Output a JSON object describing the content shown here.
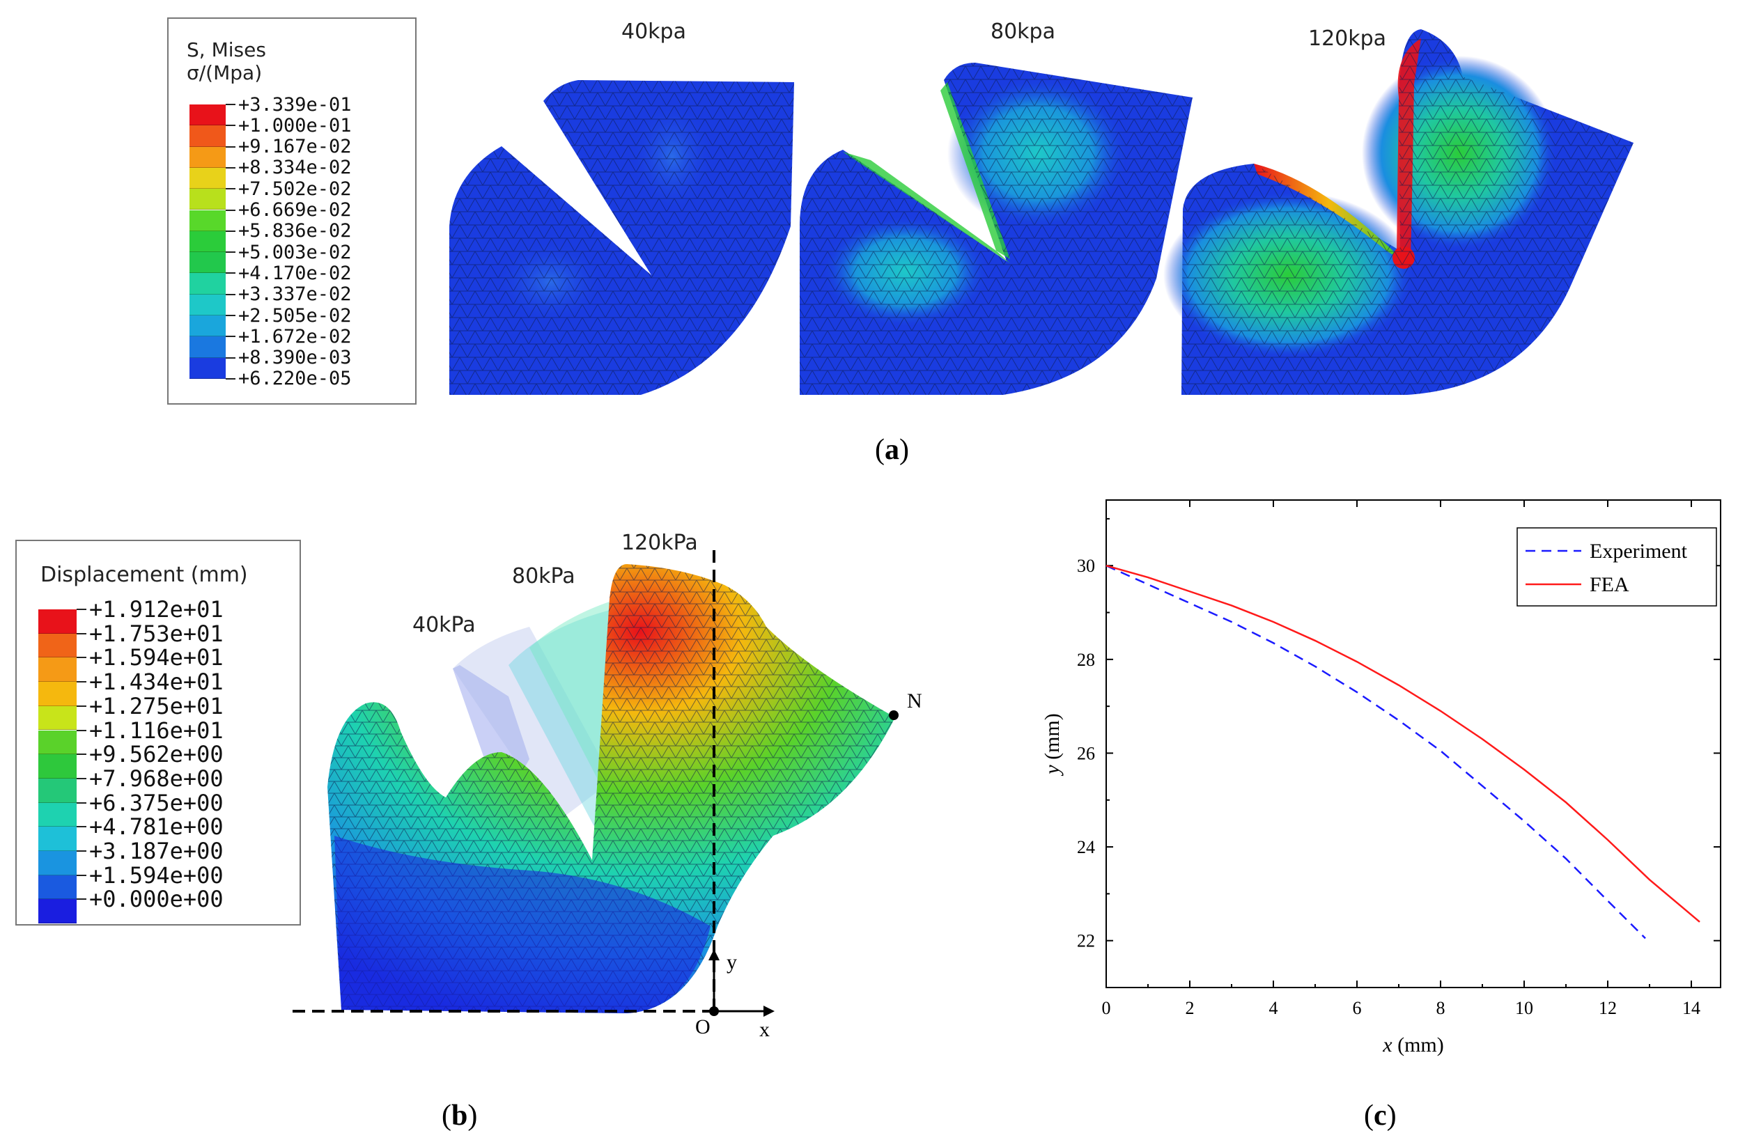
{
  "panel_a": {
    "label": "(a)",
    "letter": "a",
    "legend": {
      "title_line1": "S, Mises",
      "title_line2": "σ/(Mpa)",
      "values": [
        "+3.339e-01",
        "+1.000e-01",
        "+9.167e-02",
        "+8.334e-02",
        "+7.502e-02",
        "+6.669e-02",
        "+5.836e-02",
        "+5.003e-02",
        "+4.170e-02",
        "+3.337e-02",
        "+2.505e-02",
        "+1.672e-02",
        "+8.390e-03",
        "+6.220e-05"
      ],
      "colors": [
        "#e8121a",
        "#f0581a",
        "#f59a16",
        "#e8d21a",
        "#b8e01c",
        "#58d82a",
        "#2bcc3a",
        "#22c84c",
        "#20d2a0",
        "#1ec8c8",
        "#1aa6dc",
        "#1a78e0",
        "#1a3ce0"
      ]
    },
    "plots": [
      {
        "title": "40kpa"
      },
      {
        "title": "80kpa"
      },
      {
        "title": "120kpa"
      }
    ]
  },
  "panel_b": {
    "label": "(b)",
    "letter": "b",
    "legend": {
      "title": "Displacement (mm)",
      "values": [
        "+1.912e+01",
        "+1.753e+01",
        "+1.594e+01",
        "+1.434e+01",
        "+1.275e+01",
        "+1.116e+01",
        "+9.562e+00",
        "+7.968e+00",
        "+6.375e+00",
        "+4.781e+00",
        "+3.187e+00",
        "+1.594e+00",
        "+0.000e+00"
      ],
      "colors": [
        "#e8121a",
        "#f06418",
        "#f59a16",
        "#f5b80e",
        "#c8e41a",
        "#5ad22a",
        "#2ec83c",
        "#24c878",
        "#1ed2b0",
        "#1ec0d8",
        "#1a94e0",
        "#1a5ae0",
        "#1a1ee0"
      ]
    },
    "pressure_labels": [
      "40kPa",
      "80kPa",
      "120kPa"
    ],
    "axis_labels": {
      "origin": "O",
      "x": "x",
      "y": "y",
      "point": "N"
    }
  },
  "panel_c": {
    "label": "(c)",
    "letter": "c"
  },
  "chart_data": {
    "type": "line",
    "title": "",
    "xlabel": "x (mm)",
    "ylabel": "y (mm)",
    "xlabel_var": "x",
    "xlabel_unit": " (mm)",
    "ylabel_var": "y",
    "ylabel_unit": " (mm)",
    "xlim": [
      0,
      14.7
    ],
    "ylim": [
      21,
      31.4
    ],
    "xticks": [
      0,
      2,
      4,
      6,
      8,
      10,
      12,
      14
    ],
    "yticks": [
      22,
      24,
      26,
      28,
      30
    ],
    "legend_position": "top-right",
    "series": [
      {
        "name": "Experiment",
        "style": "dashed",
        "color": "#1a1aff",
        "x": [
          0,
          1,
          2,
          3,
          4,
          5,
          6,
          7,
          8,
          9,
          10,
          11,
          12,
          12.9
        ],
        "y": [
          30.0,
          29.6,
          29.2,
          28.8,
          28.35,
          27.85,
          27.3,
          26.7,
          26.05,
          25.3,
          24.55,
          23.75,
          22.85,
          22.05
        ]
      },
      {
        "name": "FEA",
        "style": "solid",
        "color": "#ff1a1a",
        "x": [
          0,
          1,
          2,
          3,
          4,
          5,
          6,
          7,
          8,
          9,
          10,
          11,
          12,
          13,
          14.2
        ],
        "y": [
          30.0,
          29.75,
          29.45,
          29.15,
          28.8,
          28.4,
          27.95,
          27.45,
          26.9,
          26.3,
          25.65,
          24.95,
          24.15,
          23.3,
          22.4
        ]
      }
    ]
  }
}
